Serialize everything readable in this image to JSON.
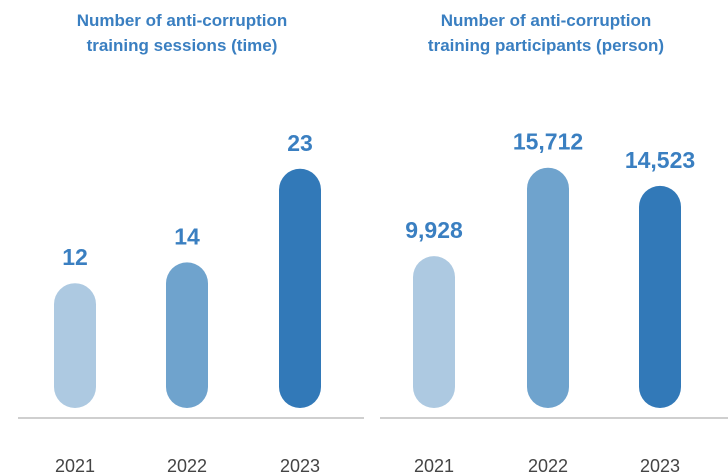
{
  "chart_data": [
    {
      "type": "bar",
      "title_lines": [
        "Number of anti-corruption",
        "training sessions (time)"
      ],
      "categories": [
        "2021",
        "2022",
        "2023"
      ],
      "values": [
        12,
        14,
        23
      ],
      "value_labels": [
        "12",
        "14",
        "23"
      ],
      "ylim": [
        0,
        25
      ],
      "grid": false,
      "xlabel": "",
      "ylabel": "",
      "colors": [
        "#adc9e1",
        "#6fa3cd",
        "#3279b8"
      ],
      "title_color": "#3a7fc1",
      "label_color": "#3a7fc1",
      "tick_color": "#444444",
      "axis_color": "#bfbfbf"
    },
    {
      "type": "bar",
      "title_lines": [
        "Number of anti-corruption",
        "training participants (person)"
      ],
      "categories": [
        "2021",
        "2022",
        "2023"
      ],
      "values": [
        9928,
        15712,
        14523
      ],
      "value_labels": [
        "9,928",
        "15,712",
        "14,523"
      ],
      "ylim": [
        0,
        17000
      ],
      "grid": false,
      "xlabel": "",
      "ylabel": "",
      "colors": [
        "#adc9e1",
        "#6fa3cd",
        "#3279b8"
      ],
      "title_color": "#3a7fc1",
      "label_color": "#3a7fc1",
      "tick_color": "#444444",
      "axis_color": "#bfbfbf"
    }
  ]
}
